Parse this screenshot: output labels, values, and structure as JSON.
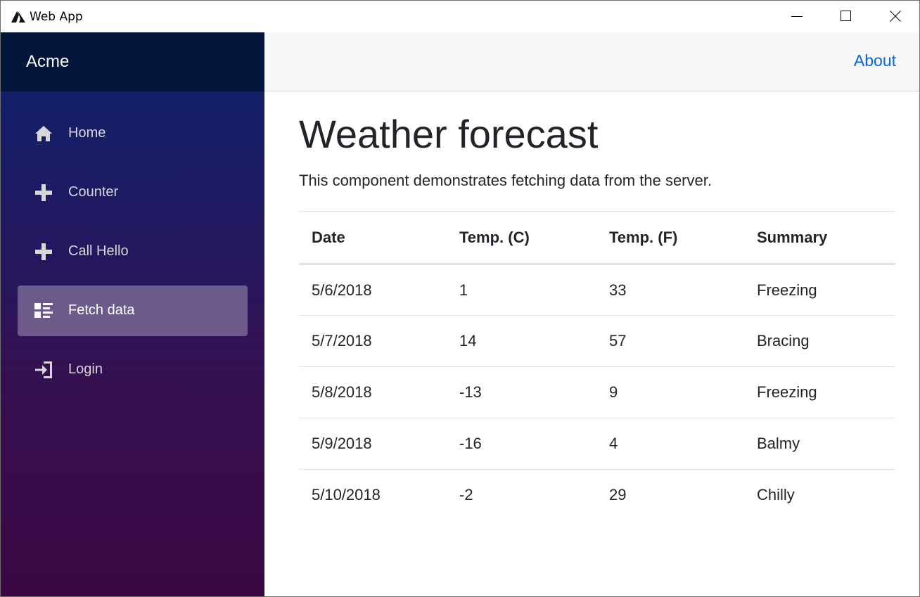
{
  "window": {
    "title": "Web App",
    "icon": "app-logo-icon"
  },
  "sidebar": {
    "brand": "Acme",
    "items": [
      {
        "label": "Home",
        "icon": "home-icon",
        "active": false
      },
      {
        "label": "Counter",
        "icon": "plus-icon",
        "active": false
      },
      {
        "label": "Call Hello",
        "icon": "plus-icon",
        "active": false
      },
      {
        "label": "Fetch data",
        "icon": "list-rich-icon",
        "active": true
      },
      {
        "label": "Login",
        "icon": "login-icon",
        "active": false
      }
    ]
  },
  "header": {
    "about_link": "About"
  },
  "main": {
    "title": "Weather forecast",
    "description": "This component demonstrates fetching data from the server.",
    "table": {
      "columns": [
        "Date",
        "Temp. (C)",
        "Temp. (F)",
        "Summary"
      ],
      "rows": [
        [
          "5/6/2018",
          "1",
          "33",
          "Freezing"
        ],
        [
          "5/7/2018",
          "14",
          "57",
          "Bracing"
        ],
        [
          "5/8/2018",
          "-13",
          "9",
          "Freezing"
        ],
        [
          "5/9/2018",
          "-16",
          "4",
          "Balmy"
        ],
        [
          "5/10/2018",
          "-2",
          "29",
          "Chilly"
        ]
      ]
    }
  },
  "colors": {
    "brand_bar": "#03173c",
    "sidebar_top": "#0d2468",
    "sidebar_bottom": "#3b0844",
    "link": "#0366d6",
    "top_row": "#f7f7f7"
  }
}
